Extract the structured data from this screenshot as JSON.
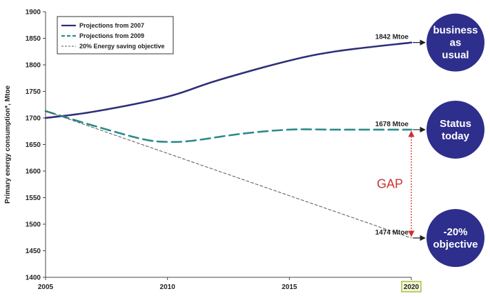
{
  "chart_data": {
    "type": "line",
    "ylabel": "Primary energy consumption*, Mtoe",
    "xlim": [
      2005,
      2020
    ],
    "ylim": [
      1400,
      1900
    ],
    "x_ticks": [
      "2005",
      "2010",
      "2015",
      "2020"
    ],
    "y_ticks": [
      "1400",
      "1450",
      "1500",
      "1550",
      "1600",
      "1650",
      "1700",
      "1750",
      "1800",
      "1850",
      "1900"
    ],
    "highlighted_x_tick": "2020",
    "legend_position": "top-left",
    "series": [
      {
        "name": "Projections from 2007",
        "color": "#2e2e7a",
        "style": "solid-thick",
        "x": [
          2005,
          2007,
          2010,
          2012,
          2015,
          2017,
          2020
        ],
        "y": [
          1700,
          1712,
          1740,
          1770,
          1808,
          1826,
          1842
        ]
      },
      {
        "name": "Projections from 2009",
        "color": "#2a8a8a",
        "style": "dashed",
        "x": [
          2005,
          2007,
          2009,
          2010,
          2011,
          2013,
          2015,
          2017,
          2020
        ],
        "y": [
          1713,
          1685,
          1660,
          1655,
          1657,
          1670,
          1678,
          1678,
          1678
        ]
      },
      {
        "name": "20% Energy saving objective",
        "color": "#555555",
        "style": "thin-dashed",
        "x": [
          2005,
          2020
        ],
        "y": [
          1713,
          1474
        ]
      }
    ],
    "annotations": [
      {
        "label": "1842 Mtoe",
        "x": 2020,
        "y": 1842
      },
      {
        "label": "1678 Mtoe",
        "x": 2020,
        "y": 1678
      },
      {
        "label": "1474 Mtoe",
        "x": 2020,
        "y": 1474
      }
    ],
    "gap": {
      "label": "GAP",
      "x": 2020,
      "from": 1678,
      "to": 1474,
      "color": "#cc3333"
    },
    "callouts": [
      {
        "lines": [
          "business",
          "as",
          "usual"
        ],
        "target_y": 1842
      },
      {
        "lines": [
          "Status",
          "today"
        ],
        "target_y": 1678
      },
      {
        "lines": [
          "-20%",
          "objective"
        ],
        "target_y": 1474
      }
    ],
    "callout_color": "#2e2e8c"
  }
}
